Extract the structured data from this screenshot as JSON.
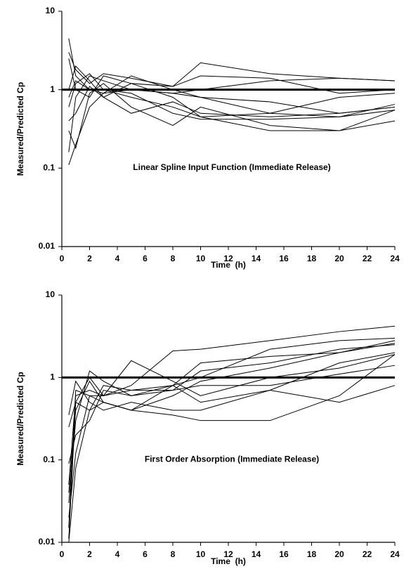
{
  "chart_data": [
    {
      "type": "line",
      "annotation": "Linear Spline Input Function (Immediate Release)",
      "xlabel": "Time  (h)",
      "ylabel": "Measured/Predicted Cp",
      "x": [
        0.5,
        1,
        2,
        3,
        5,
        8,
        10,
        15,
        20,
        24
      ],
      "xlim": [
        0,
        24
      ],
      "xticks": [
        0,
        2,
        4,
        6,
        8,
        10,
        12,
        14,
        16,
        18,
        20,
        22,
        24
      ],
      "ylim": [
        0.01,
        10
      ],
      "yticks": [
        0.01,
        0.1,
        1,
        10
      ],
      "log_y": true,
      "reference_line": 1,
      "series": [
        {
          "color": "#000000",
          "values": [
            4.5,
            1.5,
            1.0,
            0.9,
            1.0,
            0.9,
            1.0,
            1.3,
            1.4,
            1.3
          ]
        },
        {
          "color": "#000000",
          "values": [
            3.0,
            1.8,
            1.2,
            1.6,
            1.4,
            1.1,
            2.2,
            1.6,
            1.4,
            1.3
          ]
        },
        {
          "color": "#000000",
          "values": [
            0.16,
            0.8,
            1.5,
            1.3,
            1.0,
            0.9,
            0.8,
            0.7,
            0.5,
            0.6
          ]
        },
        {
          "color": "#000000",
          "values": [
            0.11,
            0.2,
            0.6,
            0.9,
            1.5,
            1.0,
            0.8,
            0.5,
            0.45,
            0.55
          ]
        },
        {
          "color": "#000000",
          "values": [
            0.3,
            0.18,
            0.9,
            1.2,
            0.6,
            0.35,
            0.6,
            0.35,
            0.3,
            0.4
          ]
        },
        {
          "color": "#000000",
          "values": [
            0.6,
            1.2,
            1.6,
            1.0,
            0.8,
            0.6,
            0.45,
            0.3,
            0.3,
            0.55
          ]
        },
        {
          "color": "#000000",
          "values": [
            1.0,
            2.0,
            1.3,
            0.8,
            0.5,
            0.7,
            0.5,
            0.45,
            0.5,
            0.6
          ]
        },
        {
          "color": "#000000",
          "values": [
            0.4,
            0.5,
            1.1,
            0.8,
            1.2,
            1.1,
            1.5,
            1.4,
            0.9,
            1.0
          ]
        },
        {
          "color": "#000000",
          "values": [
            2.5,
            1.0,
            0.8,
            1.5,
            1.2,
            0.8,
            0.45,
            0.5,
            0.8,
            0.9
          ]
        },
        {
          "color": "#000000",
          "values": [
            0.8,
            1.3,
            1.0,
            1.0,
            0.9,
            0.5,
            0.42,
            0.42,
            0.45,
            0.65
          ]
        }
      ]
    },
    {
      "type": "line",
      "annotation": "First Order Absorption (Immediate Release)",
      "xlabel": "Time  (h)",
      "ylabel": "Measured/Predicted Cp",
      "x": [
        0.5,
        1,
        2,
        3,
        5,
        8,
        10,
        15,
        20,
        24
      ],
      "xlim": [
        0,
        24
      ],
      "xticks": [
        0,
        2,
        4,
        6,
        8,
        10,
        12,
        14,
        16,
        18,
        20,
        22,
        24
      ],
      "ylim": [
        0.01,
        10
      ],
      "yticks": [
        0.01,
        0.1,
        1,
        10
      ],
      "log_y": true,
      "reference_line": 1,
      "series": [
        {
          "color": "#000000",
          "values": [
            0.011,
            0.5,
            1.0,
            0.6,
            0.8,
            2.1,
            2.2,
            2.8,
            3.6,
            4.2
          ]
        },
        {
          "color": "#000000",
          "values": [
            0.03,
            0.3,
            1.2,
            0.9,
            0.6,
            0.7,
            1.2,
            1.5,
            2.2,
            2.5
          ]
        },
        {
          "color": "#000000",
          "values": [
            0.02,
            0.12,
            0.6,
            0.5,
            0.4,
            0.35,
            0.3,
            0.3,
            0.6,
            1.9
          ]
        },
        {
          "color": "#000000",
          "values": [
            0.05,
            0.6,
            0.7,
            0.6,
            1.6,
            0.9,
            0.6,
            1.0,
            1.3,
            1.9
          ]
        },
        {
          "color": "#000000",
          "values": [
            0.25,
            0.5,
            0.4,
            0.5,
            0.4,
            0.8,
            1.5,
            1.8,
            2.0,
            2.8
          ]
        },
        {
          "color": "#000000",
          "values": [
            0.01,
            0.08,
            0.4,
            0.8,
            0.7,
            0.7,
            0.8,
            0.8,
            1.1,
            1.4
          ]
        },
        {
          "color": "#000000",
          "values": [
            0.35,
            0.9,
            0.5,
            0.4,
            0.5,
            0.4,
            0.4,
            0.7,
            1.5,
            2.0
          ]
        },
        {
          "color": "#000000",
          "values": [
            0.04,
            0.4,
            0.9,
            0.5,
            0.4,
            0.6,
            0.9,
            1.3,
            2.0,
            2.6
          ]
        },
        {
          "color": "#000000",
          "values": [
            0.09,
            0.2,
            0.3,
            0.7,
            0.6,
            0.8,
            0.5,
            0.7,
            0.5,
            0.8
          ]
        },
        {
          "color": "#000000",
          "values": [
            0.015,
            0.7,
            0.6,
            0.6,
            0.7,
            0.8,
            1.0,
            2.2,
            2.8,
            3.0
          ]
        }
      ]
    }
  ]
}
